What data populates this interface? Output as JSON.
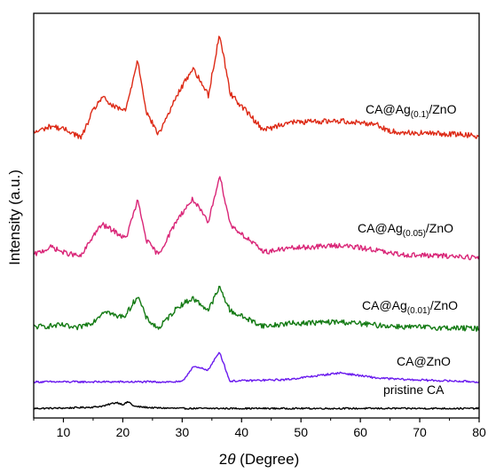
{
  "chart_data": {
    "type": "line",
    "title": "",
    "xlabel_main": "2",
    "xlabel_symbol": "θ",
    "xlabel_unit": " (Degree)",
    "ylabel": "Intensity (a.u.)",
    "xlim": [
      5,
      80
    ],
    "x_ticks": [
      "10",
      "20",
      "30",
      "40",
      "50",
      "60",
      "70",
      "80"
    ],
    "y_ticks_shown": false,
    "grid": false,
    "legend": "inline labels at right",
    "peak_positions_2theta": [
      29.3,
      31.8,
      34.4,
      36.3,
      38.1,
      43.3,
      44.3,
      47.6,
      56.6,
      62.9,
      64.6,
      68.0,
      77.3
    ],
    "series": [
      {
        "name": "pristine CA",
        "color": "#000000",
        "points": [
          [
            5,
            1
          ],
          [
            10,
            1.5
          ],
          [
            15,
            3
          ],
          [
            17,
            5
          ],
          [
            18,
            8
          ],
          [
            19,
            10
          ],
          [
            20,
            7
          ],
          [
            21,
            11
          ],
          [
            21.5,
            7
          ],
          [
            22,
            4
          ],
          [
            25,
            2
          ],
          [
            30,
            1
          ],
          [
            40,
            1
          ],
          [
            60,
            1
          ],
          [
            80,
            1
          ]
        ]
      },
      {
        "name": "CA@ZnO",
        "color": "#6a1aee",
        "points": [
          [
            5,
            2
          ],
          [
            20,
            2
          ],
          [
            30,
            2
          ],
          [
            31.8,
            22
          ],
          [
            34.4,
            18
          ],
          [
            36.3,
            42
          ],
          [
            38,
            3
          ],
          [
            47.6,
            5
          ],
          [
            56.6,
            14
          ],
          [
            62.9,
            7
          ],
          [
            68,
            5
          ],
          [
            80,
            2
          ]
        ]
      },
      {
        "name": "CA@Ag(0.01)/ZnO",
        "label_prefix": "CA@Ag",
        "label_sub": "(0.01)",
        "label_suffix": "/ZnO",
        "color": "#137a13",
        "points": [
          [
            5,
            8
          ],
          [
            10,
            10
          ],
          [
            12,
            6
          ],
          [
            15,
            14
          ],
          [
            17,
            28
          ],
          [
            19,
            20
          ],
          [
            20.5,
            22
          ],
          [
            22.5,
            45
          ],
          [
            24,
            18
          ],
          [
            26,
            6
          ],
          [
            29.3,
            32
          ],
          [
            31.8,
            42
          ],
          [
            34.4,
            28
          ],
          [
            36.3,
            55
          ],
          [
            38.1,
            27
          ],
          [
            43.3,
            10
          ],
          [
            44.3,
            9
          ],
          [
            47.6,
            12
          ],
          [
            56.6,
            14
          ],
          [
            62.9,
            10
          ],
          [
            68,
            8
          ],
          [
            80,
            6
          ]
        ]
      },
      {
        "name": "CA@Ag(0.05)/ZnO",
        "label_prefix": "CA@Ag",
        "label_sub": "(0.05)",
        "label_suffix": "/ZnO",
        "color": "#d92577",
        "points": [
          [
            5,
            12
          ],
          [
            8,
            22
          ],
          [
            10,
            15
          ],
          [
            13,
            10
          ],
          [
            15,
            36
          ],
          [
            16.5,
            50
          ],
          [
            18.5,
            42
          ],
          [
            20.5,
            32
          ],
          [
            22.5,
            80
          ],
          [
            24,
            30
          ],
          [
            26,
            12
          ],
          [
            29.3,
            58
          ],
          [
            31.8,
            82
          ],
          [
            34.4,
            52
          ],
          [
            36.3,
            112
          ],
          [
            38.1,
            50
          ],
          [
            43.3,
            18
          ],
          [
            44.3,
            16
          ],
          [
            47.6,
            20
          ],
          [
            56.6,
            24
          ],
          [
            62.9,
            18
          ],
          [
            64.6,
            14
          ],
          [
            68,
            12
          ],
          [
            77.3,
            10
          ],
          [
            80,
            8
          ]
        ]
      },
      {
        "name": "CA@Ag(0.1)/ZnO",
        "label_prefix": "CA@Ag",
        "label_sub": "(0.1)",
        "label_suffix": "/ZnO",
        "color": "#dd2a16",
        "points": [
          [
            5,
            14
          ],
          [
            8,
            22
          ],
          [
            11,
            16
          ],
          [
            13,
            8
          ],
          [
            15,
            40
          ],
          [
            16.5,
            56
          ],
          [
            18.5,
            44
          ],
          [
            20.5,
            40
          ],
          [
            22.5,
            100
          ],
          [
            24,
            38
          ],
          [
            26,
            12
          ],
          [
            29.3,
            60
          ],
          [
            31.8,
            90
          ],
          [
            34.4,
            58
          ],
          [
            36.3,
            130
          ],
          [
            38.1,
            60
          ],
          [
            43.3,
            20
          ],
          [
            44.3,
            18
          ],
          [
            47.6,
            26
          ],
          [
            56.6,
            28
          ],
          [
            62.9,
            24
          ],
          [
            64.6,
            16
          ],
          [
            68,
            14
          ],
          [
            77.3,
            12
          ],
          [
            80,
            10
          ]
        ]
      }
    ]
  }
}
